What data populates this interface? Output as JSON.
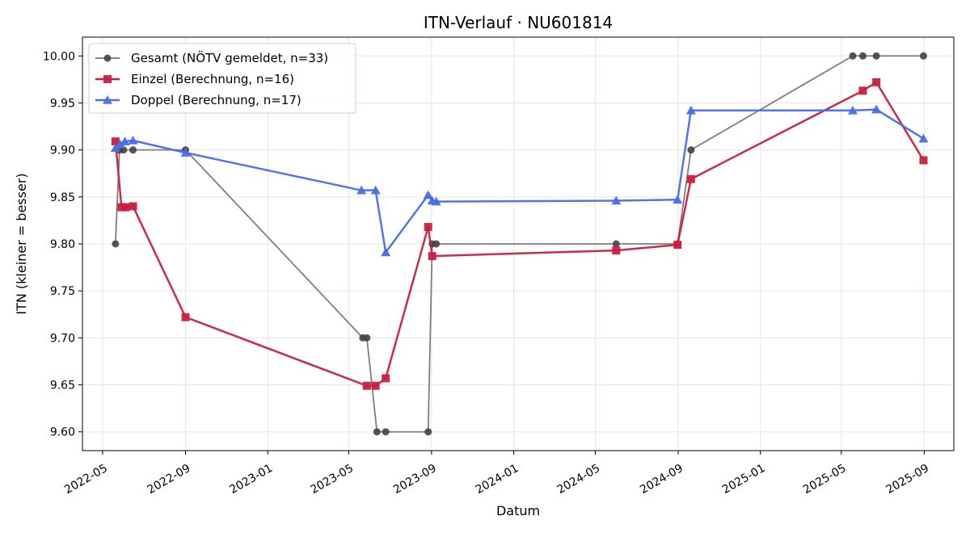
{
  "chart_data": {
    "type": "line",
    "title": "ITN-Verlauf · NU601814",
    "xlabel": "Datum",
    "ylabel": "ITN  (kleiner = besser)",
    "x_type": "date",
    "xlim": [
      "2022-04-01",
      "2025-10-15"
    ],
    "ylim": [
      9.58,
      10.02
    ],
    "x_ticks": [
      {
        "date": "2022-05-01",
        "label": "2022-05"
      },
      {
        "date": "2022-09-01",
        "label": "2022-09"
      },
      {
        "date": "2023-01-01",
        "label": "2023-01"
      },
      {
        "date": "2023-05-01",
        "label": "2023-05"
      },
      {
        "date": "2023-09-01",
        "label": "2023-09"
      },
      {
        "date": "2024-01-01",
        "label": "2024-01"
      },
      {
        "date": "2024-05-01",
        "label": "2024-05"
      },
      {
        "date": "2024-09-01",
        "label": "2024-09"
      },
      {
        "date": "2025-01-01",
        "label": "2025-01"
      },
      {
        "date": "2025-05-01",
        "label": "2025-05"
      },
      {
        "date": "2025-09-01",
        "label": "2025-09"
      }
    ],
    "y_ticks": [
      {
        "value": 9.6,
        "label": "9.60"
      },
      {
        "value": 9.65,
        "label": "9.65"
      },
      {
        "value": 9.7,
        "label": "9.70"
      },
      {
        "value": 9.75,
        "label": "9.75"
      },
      {
        "value": 9.8,
        "label": "9.80"
      },
      {
        "value": 9.85,
        "label": "9.85"
      },
      {
        "value": 9.9,
        "label": "9.90"
      },
      {
        "value": 9.95,
        "label": "9.95"
      },
      {
        "value": 10.0,
        "label": "10.00"
      }
    ],
    "grid": true,
    "legend_position": "top-left",
    "series": [
      {
        "name": "Gesamt (NÖTV gemeldet, n=33)",
        "color": "#777777",
        "marker": "circle",
        "marker_color": "#444444",
        "points": [
          {
            "x": "2022-05-20",
            "y": 9.8
          },
          {
            "x": "2022-05-26",
            "y": 9.9
          },
          {
            "x": "2022-06-01",
            "y": 9.9
          },
          {
            "x": "2022-06-15",
            "y": 9.9
          },
          {
            "x": "2022-09-01",
            "y": 9.9
          },
          {
            "x": "2023-05-22",
            "y": 9.7
          },
          {
            "x": "2023-05-28",
            "y": 9.7
          },
          {
            "x": "2023-06-12",
            "y": 9.6
          },
          {
            "x": "2023-06-25",
            "y": 9.6
          },
          {
            "x": "2023-08-27",
            "y": 9.6
          },
          {
            "x": "2023-09-02",
            "y": 9.8
          },
          {
            "x": "2023-09-08",
            "y": 9.8
          },
          {
            "x": "2024-06-01",
            "y": 9.8
          },
          {
            "x": "2024-08-31",
            "y": 9.8
          },
          {
            "x": "2024-09-20",
            "y": 9.9
          },
          {
            "x": "2025-05-18",
            "y": 10.0
          },
          {
            "x": "2025-06-02",
            "y": 10.0
          },
          {
            "x": "2025-06-22",
            "y": 10.0
          },
          {
            "x": "2025-08-31",
            "y": 10.0
          }
        ]
      },
      {
        "name": "Einzel (Berechnung, n=16)",
        "color": "#c8203f",
        "marker": "square",
        "marker_color": "#c8203f",
        "points": [
          {
            "x": "2022-05-20",
            "y": 9.909
          },
          {
            "x": "2022-05-29",
            "y": 9.839
          },
          {
            "x": "2022-06-04",
            "y": 9.839
          },
          {
            "x": "2022-06-15",
            "y": 9.84
          },
          {
            "x": "2022-09-01",
            "y": 9.722
          },
          {
            "x": "2023-05-28",
            "y": 9.649
          },
          {
            "x": "2023-06-10",
            "y": 9.649
          },
          {
            "x": "2023-06-25",
            "y": 9.657
          },
          {
            "x": "2023-08-27",
            "y": 9.818
          },
          {
            "x": "2023-09-02",
            "y": 9.787
          },
          {
            "x": "2024-06-01",
            "y": 9.793
          },
          {
            "x": "2024-08-31",
            "y": 9.799
          },
          {
            "x": "2024-09-20",
            "y": 9.869
          },
          {
            "x": "2025-06-02",
            "y": 9.963
          },
          {
            "x": "2025-06-22",
            "y": 9.972
          },
          {
            "x": "2025-08-31",
            "y": 9.889
          }
        ]
      },
      {
        "name": "Doppel (Berechnung, n=17)",
        "color": "#4a6de8",
        "marker": "triangle",
        "marker_color": "#4a6de8",
        "points": [
          {
            "x": "2022-05-20",
            "y": 9.902
          },
          {
            "x": "2022-05-27",
            "y": 9.906
          },
          {
            "x": "2022-06-03",
            "y": 9.909
          },
          {
            "x": "2022-06-15",
            "y": 9.91
          },
          {
            "x": "2022-09-01",
            "y": 9.897
          },
          {
            "x": "2023-05-20",
            "y": 9.857
          },
          {
            "x": "2023-06-10",
            "y": 9.857
          },
          {
            "x": "2023-06-25",
            "y": 9.791
          },
          {
            "x": "2023-08-27",
            "y": 9.852
          },
          {
            "x": "2023-09-02",
            "y": 9.846
          },
          {
            "x": "2023-09-08",
            "y": 9.845
          },
          {
            "x": "2024-06-01",
            "y": 9.846
          },
          {
            "x": "2024-08-31",
            "y": 9.847
          },
          {
            "x": "2024-09-20",
            "y": 9.942
          },
          {
            "x": "2025-05-18",
            "y": 9.942
          },
          {
            "x": "2025-06-22",
            "y": 9.943
          },
          {
            "x": "2025-08-31",
            "y": 9.912
          }
        ]
      }
    ]
  }
}
